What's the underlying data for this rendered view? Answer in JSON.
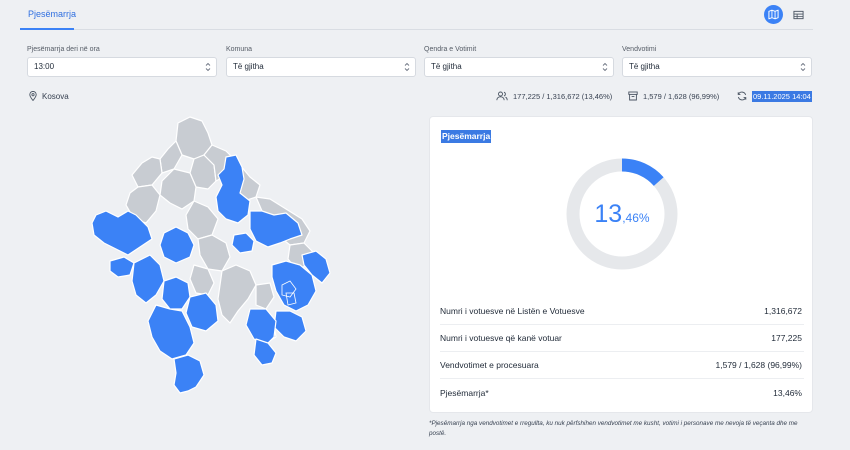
{
  "tabs": {
    "active": "Pjesëmarrja"
  },
  "filters": [
    {
      "label": "Pjesëmarrja deri në ora",
      "value": "13:00"
    },
    {
      "label": "Komuna",
      "value": "Të gjitha"
    },
    {
      "label": "Qendra e Votimit",
      "value": "Të gjitha"
    },
    {
      "label": "Vendvotimi",
      "value": "Të gjitha"
    }
  ],
  "location": "Kosova",
  "stats": {
    "voters": "177,225 / 1,316,672 (13,46%)",
    "stations": "1,579 / 1,628 (96,99%)",
    "updated": "09.11.2025 14:04"
  },
  "card": {
    "title": "Pjesëmarrja",
    "turnout_int": "13",
    "turnout_dec": ",46%",
    "turnout_fraction": 0.1346,
    "rows": [
      {
        "label": "Numri i votuesve në Listën e Votuesve",
        "value": "1,316,672"
      },
      {
        "label": "Numri i votuesve që kanë votuar",
        "value": "177,225"
      },
      {
        "label": "Vendvotimet e procesuara",
        "value": "1,579 / 1,628 (96,99%)"
      },
      {
        "label": "Pjesëmarrja*",
        "value": "13,46%"
      }
    ]
  },
  "footnote": "*Pjesëmarrja nga vendvotimet e rregullta, ku nuk përfshihen vendvotimet me kusht, votimi i personave me nevoja të veçanta dhe me postë.",
  "colors": {
    "accent": "#3b82f6",
    "map_highlight": "#3b82f6",
    "map_base": "#c8ccd2",
    "ring_base": "#e6e8eb"
  }
}
